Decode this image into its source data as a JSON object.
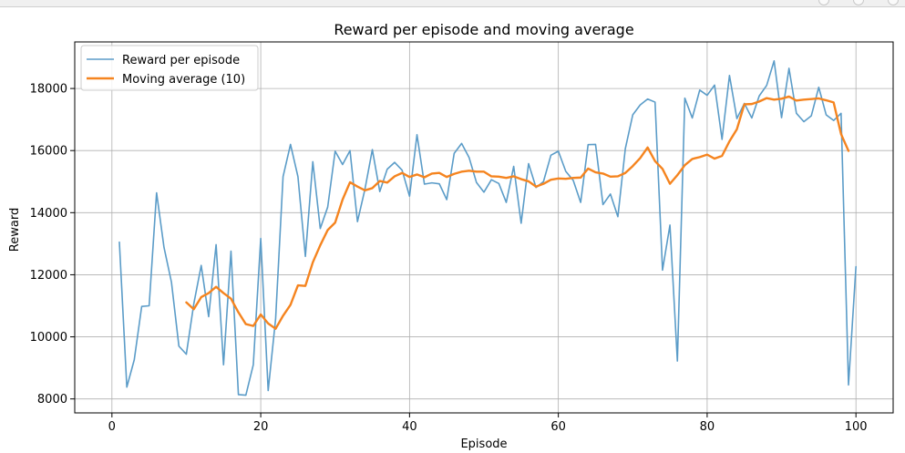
{
  "chart_data": {
    "type": "line",
    "title": "Reward per episode and moving average",
    "xlabel": "Episode",
    "ylabel": "Reward",
    "xlim": [
      -5,
      105
    ],
    "ylim": [
      7550,
      19500
    ],
    "xticks": [
      0,
      20,
      40,
      60,
      80,
      100
    ],
    "yticks": [
      8000,
      10000,
      12000,
      14000,
      16000,
      18000
    ],
    "xtick_labels": [
      "0",
      "20",
      "40",
      "60",
      "80",
      "100"
    ],
    "ytick_labels": [
      "8000",
      "10000",
      "12000",
      "14000",
      "16000",
      "18000"
    ],
    "grid": true,
    "legend_position": "top-left",
    "series": [
      {
        "name": "Reward per episode",
        "color": "#5b9cc8",
        "x_start": 1,
        "values": [
          13050,
          8380,
          9260,
          10980,
          11000,
          14640,
          12880,
          11760,
          9700,
          9440,
          11060,
          12300,
          10650,
          12970,
          9100,
          12760,
          8140,
          8120,
          9100,
          13170,
          8270,
          10580,
          15160,
          16200,
          15160,
          12590,
          15640,
          13490,
          14180,
          15980,
          15550,
          16000,
          13710,
          14750,
          16030,
          14680,
          15400,
          15620,
          15370,
          14530,
          16510,
          14920,
          14960,
          14930,
          14420,
          15910,
          16230,
          15780,
          14970,
          14660,
          15060,
          14940,
          14330,
          15490,
          13660,
          15580,
          14810,
          15000,
          15850,
          15980,
          15330,
          15040,
          14330,
          16190,
          16200,
          14260,
          14600,
          13870,
          16060,
          17150,
          17470,
          17660,
          17560,
          12150,
          13600,
          9220,
          17690,
          17050,
          17950,
          17780,
          18110,
          16360,
          18420,
          17030,
          17520,
          17050,
          17760,
          18100,
          18890,
          17060,
          18650,
          17200,
          16930,
          17120,
          18040,
          17150,
          16970,
          17200,
          8450,
          12260
        ]
      },
      {
        "name": "Moving average (10)",
        "color": "#f5841f",
        "x_start": 10,
        "values": [
          11110,
          10890,
          11280,
          11410,
          11610,
          11410,
          11230,
          10790,
          10410,
          10350,
          10720,
          10430,
          10260,
          10680,
          11030,
          11660,
          11640,
          12400,
          12950,
          13440,
          13680,
          14420,
          14980,
          14840,
          14720,
          14790,
          15020,
          14970,
          15170,
          15280,
          15150,
          15230,
          15140,
          15260,
          15280,
          15150,
          15250,
          15320,
          15350,
          15320,
          15320,
          15170,
          15160,
          15120,
          15170,
          15080,
          15010,
          14840,
          14930,
          15060,
          15100,
          15090,
          15120,
          15130,
          15420,
          15300,
          15260,
          15160,
          15170,
          15280,
          15500,
          15760,
          16100,
          15660,
          15410,
          14930,
          15210,
          15530,
          15730,
          15790,
          15870,
          15740,
          15830,
          16300,
          16690,
          17490,
          17500,
          17580,
          17690,
          17640,
          17670,
          17740,
          17610,
          17640,
          17660,
          17680,
          17620,
          17550,
          16530,
          15990
        ]
      }
    ]
  }
}
